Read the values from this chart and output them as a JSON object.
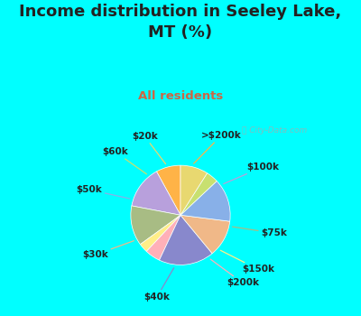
{
  "title": "Income distribution in Seeley Lake,\nMT (%)",
  "subtitle": "All residents",
  "watermark": "City-Data.com",
  "bg_cyan": "#00FFFF",
  "chart_bg_color": "#d4ede4",
  "labels": [
    ">$200k",
    "$100k",
    "$75k",
    "$150k",
    "$200k",
    "$40k",
    "$30k",
    "$50k",
    "$60k",
    "$20k"
  ],
  "values": [
    8,
    14,
    13,
    3,
    5,
    18,
    12,
    14,
    4,
    9
  ],
  "colors": [
    "#FFB347",
    "#B8A0DC",
    "#A8BC84",
    "#FFEE88",
    "#FFB0B8",
    "#8888CC",
    "#F0B888",
    "#88B0E8",
    "#C8E070",
    "#E8D870"
  ],
  "startangle": 90,
  "figsize": [
    4.0,
    3.5
  ],
  "dpi": 100,
  "title_color": "#222222",
  "subtitle_color": "#CC6644",
  "label_color": "#222222",
  "label_fontsize": 7.5,
  "title_fontsize": 13,
  "subtitle_fontsize": 9.5
}
